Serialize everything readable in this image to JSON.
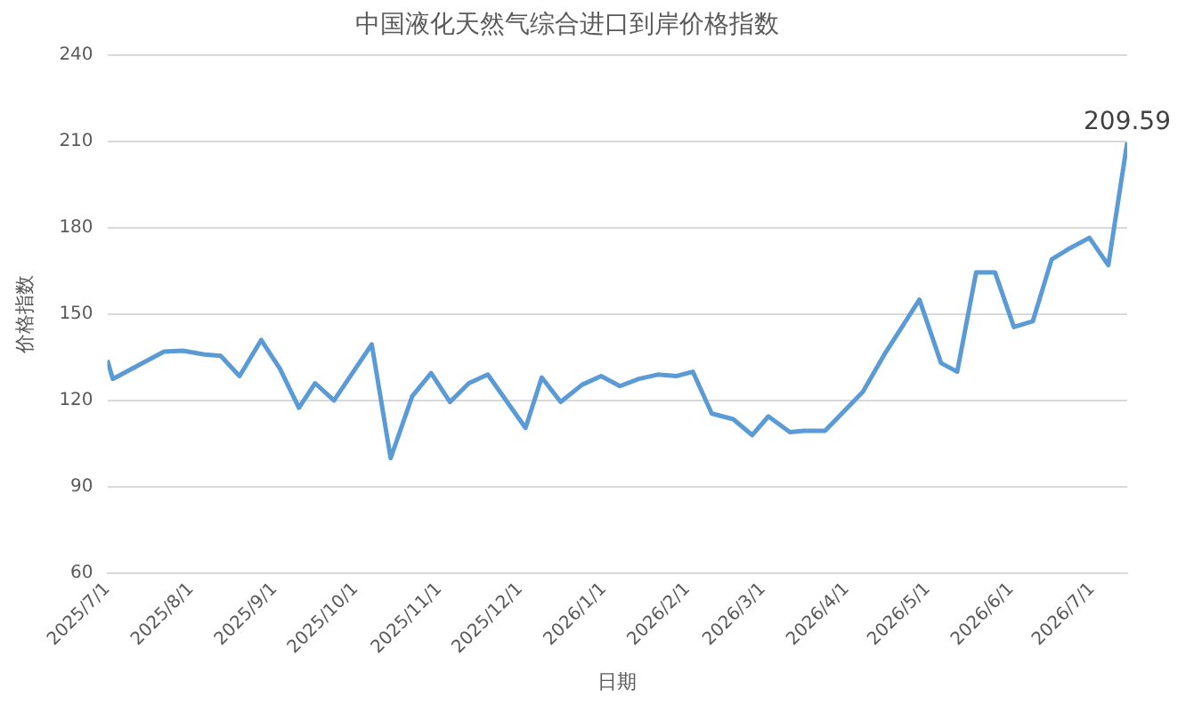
{
  "chart_data": {
    "type": "line",
    "title": "中国液化天然气综合进口到岸价格指数",
    "xlabel": "日期",
    "ylabel": "价格指数",
    "x": [
      "2025-07-01",
      "2025-07-03",
      "2025-07-22",
      "2025-07-29",
      "2025-08-06",
      "2025-08-12",
      "2025-08-19",
      "2025-08-27",
      "2025-09-03",
      "2025-09-10",
      "2025-09-16",
      "2025-09-23",
      "2025-10-07",
      "2025-10-14",
      "2025-10-22",
      "2025-10-29",
      "2025-11-05",
      "2025-11-12",
      "2025-11-19",
      "2025-12-03",
      "2025-12-09",
      "2025-12-16",
      "2025-12-24",
      "2025-12-31",
      "2026-01-07",
      "2026-01-14",
      "2026-01-21",
      "2026-01-28",
      "2026-02-03",
      "2026-02-10",
      "2026-02-18",
      "2026-02-25",
      "2026-03-03",
      "2026-03-11",
      "2026-03-16",
      "2026-03-24",
      "2026-04-07",
      "2026-04-15",
      "2026-04-28",
      "2026-05-06",
      "2026-05-12",
      "2026-05-19",
      "2026-05-26",
      "2026-06-02",
      "2026-06-09",
      "2026-06-16",
      "2026-06-23",
      "2026-06-30",
      "2026-07-07",
      "2026-07-14"
    ],
    "series": [
      {
        "color": "#5b9bd5",
        "values": [
          134,
          127.5,
          137,
          137.3,
          136,
          135.5,
          128.5,
          141,
          131,
          117.5,
          126,
          120,
          139.5,
          100,
          121.5,
          129.5,
          119.5,
          126,
          129,
          110.5,
          128,
          119.5,
          125.5,
          128.5,
          125,
          127.5,
          129,
          128.5,
          130,
          115.5,
          113.5,
          108,
          114.5,
          109,
          109.5,
          109.5,
          123,
          136,
          155,
          133,
          130,
          164.5,
          164.5,
          145.5,
          147.5,
          169,
          173,
          176.5,
          167,
          209.59
        ]
      }
    ],
    "xlim": [
      "2025-07-01",
      "2026-07-14"
    ],
    "xticks": [
      {
        "value": "2025-07-01",
        "label": "2025/7/1"
      },
      {
        "value": "2025-08-01",
        "label": "2025/8/1"
      },
      {
        "value": "2025-09-01",
        "label": "2025/9/1"
      },
      {
        "value": "2025-10-01",
        "label": "2025/10/1"
      },
      {
        "value": "2025-11-01",
        "label": "2025/11/1"
      },
      {
        "value": "2025-12-01",
        "label": "2025/12/1"
      },
      {
        "value": "2026-01-01",
        "label": "2026/1/1"
      },
      {
        "value": "2026-02-01",
        "label": "2026/2/1"
      },
      {
        "value": "2026-03-01",
        "label": "2026/3/1"
      },
      {
        "value": "2026-04-01",
        "label": "2026/4/1"
      },
      {
        "value": "2026-05-01",
        "label": "2026/5/1"
      },
      {
        "value": "2026-06-01",
        "label": "2026/6/1"
      },
      {
        "value": "2026-07-01",
        "label": "2026/7/1"
      }
    ],
    "ylim": [
      60,
      240
    ],
    "yticks": [
      60,
      90,
      120,
      150,
      180,
      210,
      240
    ],
    "grid": "y",
    "marker": "none",
    "line_style": "solid",
    "annotations": [
      {
        "text": "209.59",
        "x": "2026-07-14",
        "y": 209.59
      }
    ]
  }
}
